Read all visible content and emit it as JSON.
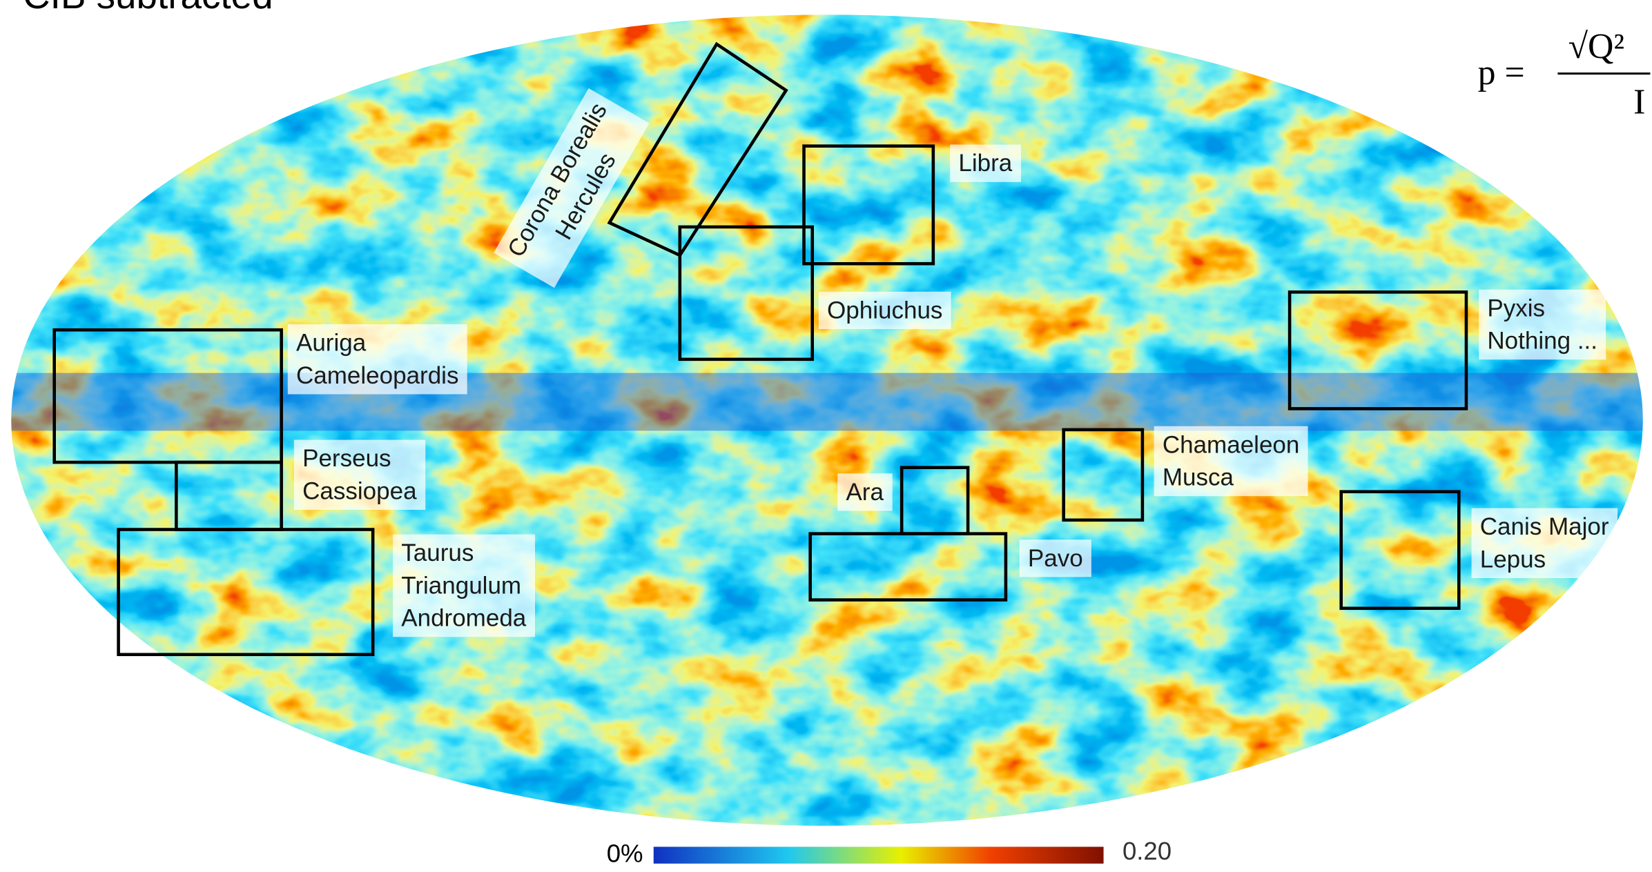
{
  "header": {
    "title": "CIB subtracted"
  },
  "formula": {
    "lhs": "p =",
    "numerator": "√Q²",
    "denominator": "I"
  },
  "regions": [
    {
      "lines": [
        "Corona Borealis",
        "Hercules"
      ]
    },
    {
      "lines": [
        "Libra"
      ]
    },
    {
      "lines": [
        "Ophiuchus"
      ]
    },
    {
      "lines": [
        "Auriga",
        "Cameleopardis"
      ]
    },
    {
      "lines": [
        "Perseus",
        "Cassiopea"
      ]
    },
    {
      "lines": [
        "Taurus",
        "Triangulum",
        "Andromeda"
      ]
    },
    {
      "lines": [
        "Ara"
      ]
    },
    {
      "lines": [
        "Pavo"
      ]
    },
    {
      "lines": [
        "Chamaeleon",
        "Musca"
      ]
    },
    {
      "lines": [
        "Pyxis",
        "Nothing ..."
      ]
    },
    {
      "lines": [
        "Canis Major",
        "Lepus"
      ]
    }
  ],
  "colorbar": {
    "min_label": "0%",
    "max_label": "0.20"
  }
}
